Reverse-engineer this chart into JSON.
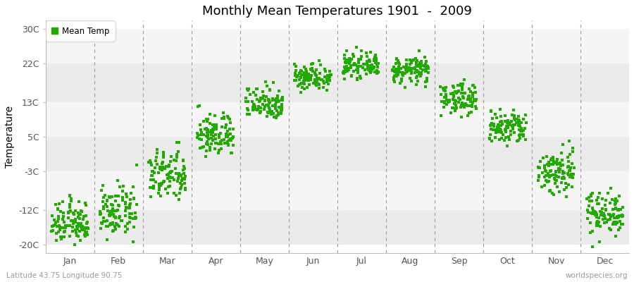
{
  "title": "Monthly Mean Temperatures 1901  -  2009",
  "ylabel": "Temperature",
  "subtitle_left": "Latitude 43.75 Longitude 90.75",
  "subtitle_right": "worldspecies.org",
  "legend_label": "Mean Temp",
  "marker_color": "#22aa00",
  "background_color": "#ffffff",
  "band_colors": [
    "#ebebeb",
    "#f5f5f5"
  ],
  "yticks": [
    -20,
    -12,
    -3,
    5,
    13,
    22,
    30
  ],
  "ytick_labels": [
    "-20C",
    "-12C",
    "-3C",
    "5C",
    "13C",
    "22C",
    "30C"
  ],
  "ylim": [
    -22,
    32
  ],
  "months": [
    "Jan",
    "Feb",
    "Mar",
    "Apr",
    "May",
    "Jun",
    "Jul",
    "Aug",
    "Sep",
    "Oct",
    "Nov",
    "Dec"
  ],
  "mean_temps": [
    -15.0,
    -12.5,
    -4.0,
    5.5,
    13.0,
    19.0,
    21.5,
    20.5,
    14.0,
    7.0,
    -3.0,
    -12.5
  ],
  "std_temps": [
    2.5,
    2.8,
    3.0,
    2.5,
    2.0,
    1.5,
    1.3,
    1.5,
    1.8,
    2.0,
    2.8,
    2.5
  ],
  "n_years": 109,
  "marker_size": 6,
  "dpi": 100,
  "figsize": [
    9.0,
    4.0
  ]
}
